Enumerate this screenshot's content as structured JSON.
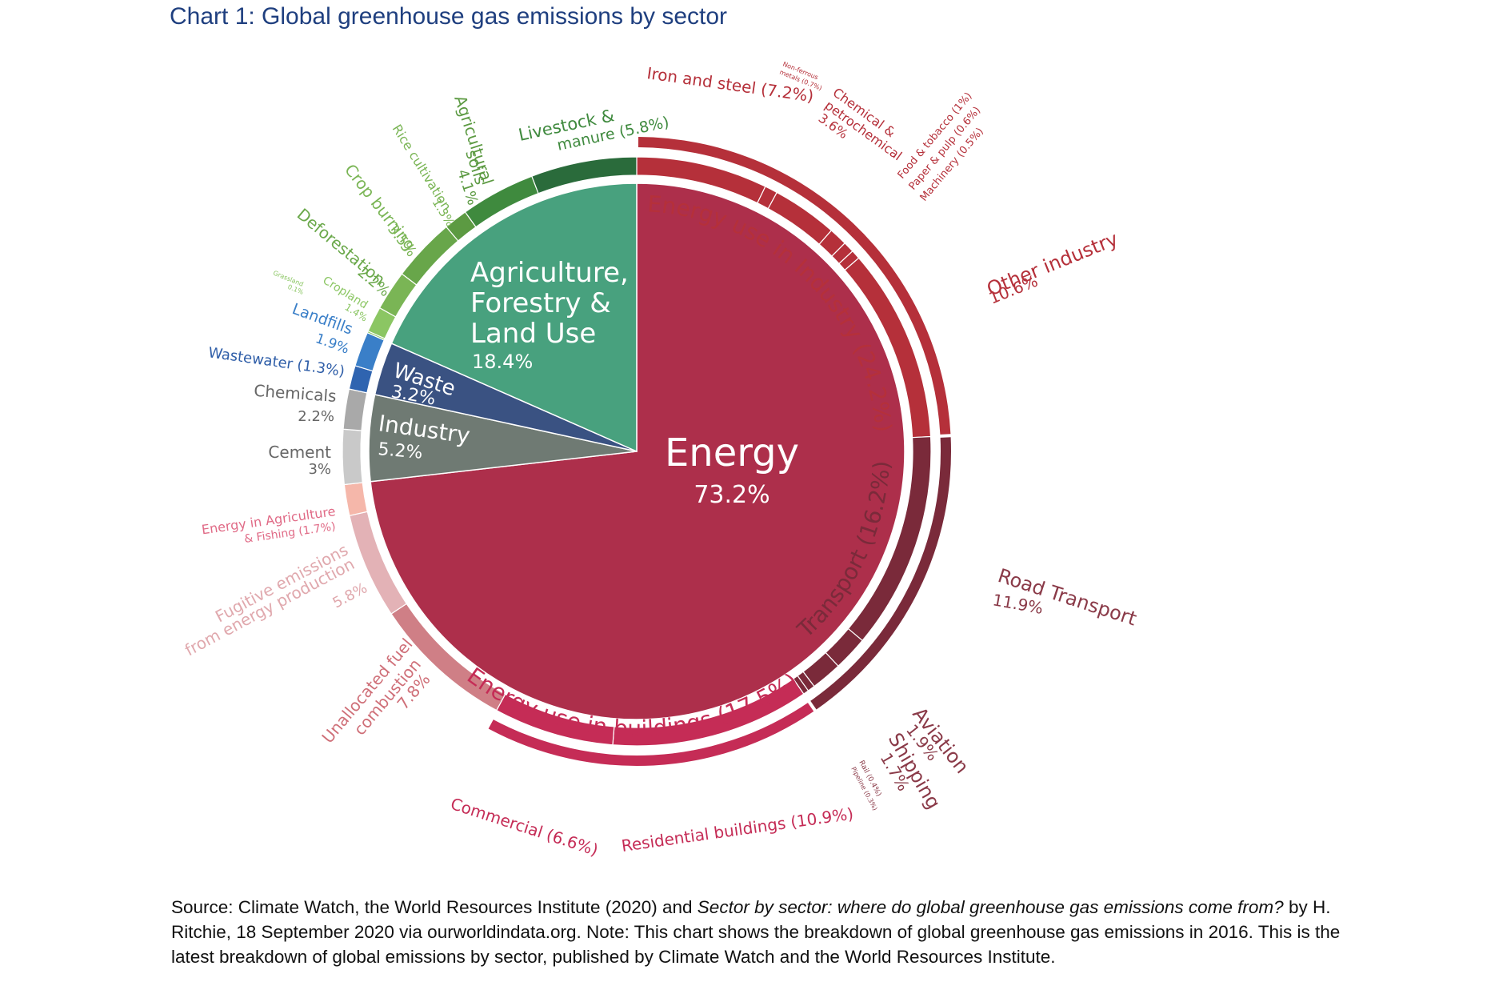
{
  "title": "Chart 1: Global greenhouse gas emissions by sector",
  "chart_data": {
    "type": "pie",
    "title": "Chart 1: Global greenhouse gas emissions by sector",
    "unit": "%",
    "sectors": [
      {
        "name": "Energy",
        "value": 73.2,
        "color": "#ad2f4b"
      },
      {
        "name": "Industry",
        "value": 5.2,
        "color": "#6f7a73"
      },
      {
        "name": "Waste",
        "value": 3.2,
        "color": "#3a5282"
      },
      {
        "name": "Agriculture, Forestry & Land Use",
        "value": 18.4,
        "color": "#48a17e"
      }
    ],
    "groups": [
      {
        "name": "Energy use in Industry",
        "value": 24.2,
        "label": "Energy use in Industry (24.2%)",
        "color": "#b5303a"
      },
      {
        "name": "Transport",
        "value": 16.2,
        "label": "Transport (16.2%)",
        "color": "#7a2a3a"
      },
      {
        "name": "Energy use in buildings",
        "value": 17.5,
        "label": "Energy use in buildings (17.5%)",
        "color": "#c52c56"
      }
    ],
    "subsectors": [
      {
        "name": "Iron and steel",
        "value": 7.2,
        "label": "Iron and steel (7.2%)",
        "sector": "Energy",
        "group": "Energy use in Industry",
        "color": "#b5303a"
      },
      {
        "name": "Non-ferrous metals",
        "value": 0.7,
        "label": "Non-ferrous metals (0.7%)",
        "sector": "Energy",
        "group": "Energy use in Industry",
        "color": "#b5303a"
      },
      {
        "name": "Chemical & petrochemical",
        "value": 3.6,
        "label": "Chemical & petrochemical 3.6%",
        "sector": "Energy",
        "group": "Energy use in Industry",
        "color": "#b5303a"
      },
      {
        "name": "Food & tobacco",
        "value": 1.0,
        "label": "Food & tobacco (1%)",
        "sector": "Energy",
        "group": "Energy use in Industry",
        "color": "#b5303a"
      },
      {
        "name": "Paper & pulp",
        "value": 0.6,
        "label": "Paper & pulp (0.6%)",
        "sector": "Energy",
        "group": "Energy use in Industry",
        "color": "#b5303a"
      },
      {
        "name": "Machinery",
        "value": 0.5,
        "label": "Machinery (0.5%)",
        "sector": "Energy",
        "group": "Energy use in Industry",
        "color": "#b5303a"
      },
      {
        "name": "Other industry",
        "value": 10.6,
        "label": "Other industry 10.6%",
        "sector": "Energy",
        "group": "Energy use in Industry",
        "color": "#b5303a"
      },
      {
        "name": "Road Transport",
        "value": 11.9,
        "label": "Road Transport 11.9%",
        "sector": "Energy",
        "group": "Transport",
        "color": "#7a2a3a"
      },
      {
        "name": "Aviation",
        "value": 1.9,
        "label": "Aviation 1.9%",
        "sector": "Energy",
        "group": "Transport",
        "color": "#7a2a3a"
      },
      {
        "name": "Shipping",
        "value": 1.7,
        "label": "Shipping 1.7%",
        "sector": "Energy",
        "group": "Transport",
        "color": "#7a2a3a"
      },
      {
        "name": "Rail",
        "value": 0.4,
        "label": "Rail (0.4%)",
        "sector": "Energy",
        "group": "Transport",
        "color": "#7a2a3a"
      },
      {
        "name": "Pipeline",
        "value": 0.3,
        "label": "Pipeline (0.3%)",
        "sector": "Energy",
        "group": "Transport",
        "color": "#7a2a3a"
      },
      {
        "name": "Residential buildings",
        "value": 10.9,
        "label": "Residential buildings (10.9%)",
        "sector": "Energy",
        "group": "Energy use in buildings",
        "color": "#c52c56"
      },
      {
        "name": "Commercial",
        "value": 6.6,
        "label": "Commercial (6.6%)",
        "sector": "Energy",
        "group": "Energy use in buildings",
        "color": "#c52c56"
      },
      {
        "name": "Unallocated fuel combustion",
        "value": 7.8,
        "label": "Unallocated fuel combustion 7.8%",
        "sector": "Energy",
        "color": "#cf7f86"
      },
      {
        "name": "Fugitive emissions from energy production",
        "value": 5.8,
        "label": "Fugitive emissions from energy production 5.8%",
        "sector": "Energy",
        "color": "#e3b2b6"
      },
      {
        "name": "Energy in Agriculture & Fishing",
        "value": 1.7,
        "label": "Energy in Agriculture & Fishing (1.7%)",
        "sector": "Energy",
        "color": "#f5b7aa"
      },
      {
        "name": "Cement",
        "value": 3.0,
        "label": "Cement 3%",
        "sector": "Industry",
        "color": "#c9c9c9"
      },
      {
        "name": "Chemicals",
        "value": 2.2,
        "label": "Chemicals 2.2%",
        "sector": "Industry",
        "color": "#a9a9a9"
      },
      {
        "name": "Wastewater",
        "value": 1.3,
        "label": "Wastewater (1.3%)",
        "sector": "Waste",
        "color": "#2f64b0"
      },
      {
        "name": "Landfills",
        "value": 1.9,
        "label": "Landfills 1.9%",
        "sector": "Waste",
        "color": "#3a7fc8"
      },
      {
        "name": "Grassland",
        "value": 0.1,
        "label": "Grassland 0.1%",
        "sector": "Agriculture, Forestry & Land Use",
        "color": "#8bc663"
      },
      {
        "name": "Cropland",
        "value": 1.4,
        "label": "Cropland 1.4%",
        "sector": "Agriculture, Forestry & Land Use",
        "color": "#8bc663"
      },
      {
        "name": "Deforestation",
        "value": 2.2,
        "label": "Deforestation 2.2%",
        "sector": "Agriculture, Forestry & Land Use",
        "color": "#7ab555"
      },
      {
        "name": "Crop burning",
        "value": 3.5,
        "label": "Crop burning 3.5%",
        "sector": "Agriculture, Forestry & Land Use",
        "color": "#68a64a"
      },
      {
        "name": "Rice cultivation",
        "value": 1.3,
        "label": "Rice cultivation 1.3%",
        "sector": "Agriculture, Forestry & Land Use",
        "color": "#5c9a42"
      },
      {
        "name": "Agricultural soils",
        "value": 4.1,
        "label": "Agricultural soils 4.1%",
        "sector": "Agriculture, Forestry & Land Use",
        "color": "#3f8a3e"
      },
      {
        "name": "Livestock & manure",
        "value": 5.8,
        "label": "Livestock & manure (5.8%)",
        "sector": "Agriculture, Forestry & Land Use",
        "color": "#2a6b3b"
      }
    ]
  },
  "footnote": {
    "part1": "Source: Climate Watch, the World Resources Institute (2020) and ",
    "italic": "Sector by sector: where do global greenhouse gas emissions come from?",
    "part2": " by H. Ritchie, 18 September 2020 via ourworldindata.org. Note: This chart shows the breakdown of global greenhouse gas emissions in 2016. This is the latest breakdown of global emissions by sector, published by Climate Watch and the World Resources Institute."
  }
}
